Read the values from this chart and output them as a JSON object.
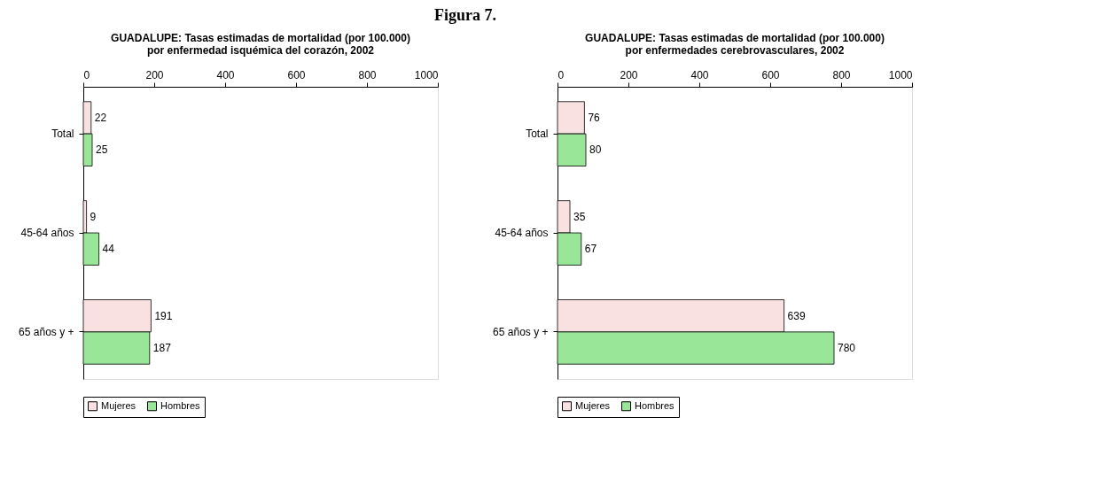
{
  "chart_data": [
    {
      "type": "bar",
      "orientation": "horizontal",
      "title": "GUADALUPE: Tasas estimadas de mortalidad (por 100.000) por enfermedad isquémica del corazón, 2002",
      "annotations": [
        "Figura 7."
      ],
      "categories": [
        "Total",
        "45-64 años",
        "65 años y +"
      ],
      "series": [
        {
          "name": "Mujeres",
          "color": "#f9e1e1",
          "values": [
            22,
            9,
            191
          ]
        },
        {
          "name": "Hombres",
          "color": "#99e699",
          "values": [
            25,
            44,
            187
          ]
        }
      ],
      "xlim": [
        0,
        1000
      ],
      "xticks": [
        0,
        200,
        400,
        600,
        800,
        1000
      ],
      "data_labels": true,
      "legend": "bottom",
      "grid": false
    },
    {
      "type": "bar",
      "orientation": "horizontal",
      "title": "GUADALUPE: Tasas estimadas de mortalidad (por 100.000) por enfermedades cerebrovasculares, 2002",
      "categories": [
        "Total",
        "45-64 años",
        "65 años y +"
      ],
      "series": [
        {
          "name": "Mujeres",
          "color": "#f9e1e1",
          "values": [
            76,
            35,
            639
          ]
        },
        {
          "name": "Hombres",
          "color": "#99e699",
          "values": [
            80,
            67,
            780
          ]
        }
      ],
      "xlim": [
        0,
        1000
      ],
      "xticks": [
        0,
        200,
        400,
        600,
        800,
        1000
      ],
      "data_labels": true,
      "legend": "bottom",
      "grid": false
    }
  ]
}
